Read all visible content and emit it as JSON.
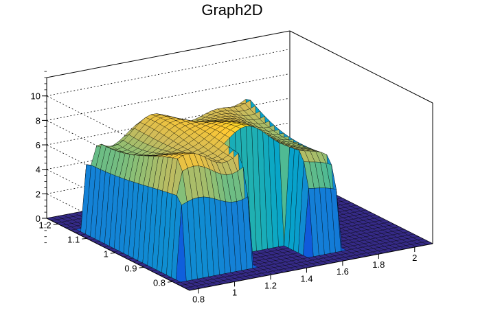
{
  "chart_data": {
    "type": "surface3d",
    "title": "Graph2D",
    "xlabel": "",
    "ylabel": "",
    "zlabel": "",
    "xlim": [
      0.75,
      2.1
    ],
    "ylim": [
      0.74,
      1.24
    ],
    "zlim": [
      0,
      11.5
    ],
    "x_ticks": [
      0.8,
      1,
      1.2,
      1.4,
      1.6,
      1.8,
      2
    ],
    "x_tick_labels": [
      "0.8",
      "1",
      "1.2",
      "1.4",
      "1.6",
      "1.8",
      "2"
    ],
    "y_ticks": [
      0.8,
      0.9,
      1,
      1.1,
      1.2
    ],
    "y_tick_labels": [
      "0.8",
      "0.9",
      "1",
      "1.1",
      "1.2"
    ],
    "z_ticks": [
      0,
      2,
      4,
      6,
      8,
      10
    ],
    "z_tick_labels": [
      "0",
      "2",
      "4",
      "6",
      "8",
      "10"
    ],
    "colormap": [
      "#352a87",
      "#0f5cdd",
      "#1481d6",
      "#06a4ca",
      "#2eb7a4",
      "#87bf77",
      "#d1bb59",
      "#fec832",
      "#f9fb0e"
    ],
    "grid": true,
    "surface": {
      "x_range": [
        0.75,
        2.1
      ],
      "y_range": [
        0.74,
        1.24
      ],
      "plateau_x": [
        0.8,
        1.7
      ],
      "plateau_y": [
        0.8,
        1.15
      ],
      "plateau_height": 8.5,
      "notch_x": [
        1.2,
        1.5
      ],
      "notch_y": [
        0.74,
        0.88
      ]
    }
  }
}
